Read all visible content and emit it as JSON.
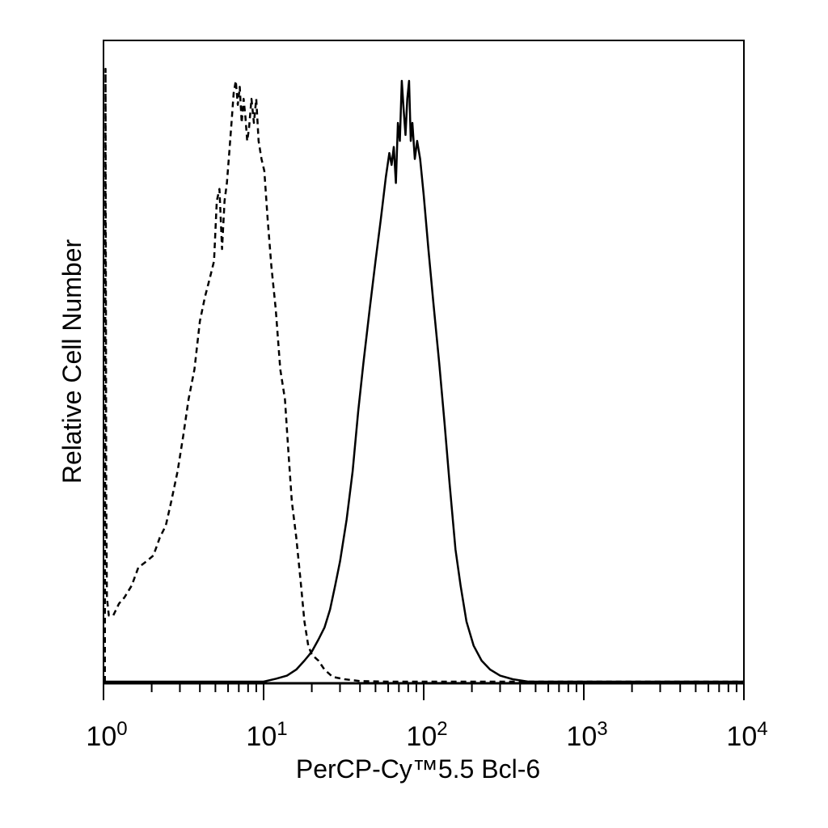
{
  "chart_data": {
    "type": "line",
    "title": "",
    "xlabel": "PerCP-Cy™5.5 Bcl-6",
    "ylabel": "Relative Cell Number",
    "x_scale": "log",
    "xlim": [
      1,
      10000
    ],
    "ylim": [
      0,
      1
    ],
    "grid": false,
    "legend": "none",
    "x_ticks": [
      {
        "value": 1,
        "base": "10",
        "exp": "0"
      },
      {
        "value": 10,
        "base": "10",
        "exp": "1"
      },
      {
        "value": 100,
        "base": "10",
        "exp": "2"
      },
      {
        "value": 1000,
        "base": "10",
        "exp": "3"
      },
      {
        "value": 10000,
        "base": "10",
        "exp": "4"
      }
    ],
    "series": [
      {
        "style": "dashed",
        "color": "#000000",
        "points": [
          [
            1.02,
            0.0
          ],
          [
            1.03,
            1.02
          ],
          [
            1.04,
            0.31
          ],
          [
            1.05,
            0.14
          ],
          [
            1.08,
            0.11
          ],
          [
            1.15,
            0.11
          ],
          [
            1.25,
            0.13
          ],
          [
            1.35,
            0.14
          ],
          [
            1.5,
            0.16
          ],
          [
            1.65,
            0.19
          ],
          [
            1.85,
            0.2
          ],
          [
            2.05,
            0.21
          ],
          [
            2.25,
            0.24
          ],
          [
            2.45,
            0.26
          ],
          [
            2.65,
            0.3
          ],
          [
            2.9,
            0.35
          ],
          [
            3.15,
            0.41
          ],
          [
            3.4,
            0.47
          ],
          [
            3.7,
            0.52
          ],
          [
            4.0,
            0.6
          ],
          [
            4.3,
            0.64
          ],
          [
            4.6,
            0.67
          ],
          [
            4.9,
            0.7
          ],
          [
            5.1,
            0.8
          ],
          [
            5.3,
            0.82
          ],
          [
            5.5,
            0.72
          ],
          [
            5.7,
            0.8
          ],
          [
            5.9,
            0.83
          ],
          [
            6.1,
            0.88
          ],
          [
            6.3,
            0.93
          ],
          [
            6.5,
            0.98
          ],
          [
            6.7,
            1.0
          ],
          [
            6.9,
            0.96
          ],
          [
            7.1,
            0.99
          ],
          [
            7.3,
            0.93
          ],
          [
            7.5,
            0.97
          ],
          [
            7.7,
            0.94
          ],
          [
            7.9,
            0.9
          ],
          [
            8.1,
            0.92
          ],
          [
            8.4,
            0.97
          ],
          [
            8.7,
            0.93
          ],
          [
            9.0,
            0.97
          ],
          [
            9.3,
            0.9
          ],
          [
            9.7,
            0.87
          ],
          [
            10.1,
            0.85
          ],
          [
            10.6,
            0.77
          ],
          [
            11.2,
            0.69
          ],
          [
            11.9,
            0.62
          ],
          [
            12.7,
            0.52
          ],
          [
            13.6,
            0.47
          ],
          [
            14.3,
            0.38
          ],
          [
            15.0,
            0.3
          ],
          [
            16.0,
            0.24
          ],
          [
            17.0,
            0.17
          ],
          [
            18.0,
            0.1
          ],
          [
            19.0,
            0.06
          ],
          [
            20.0,
            0.045
          ],
          [
            22.0,
            0.035
          ],
          [
            24.0,
            0.02
          ],
          [
            27.0,
            0.008
          ],
          [
            32.0,
            0.004
          ],
          [
            40.0,
            0.001
          ],
          [
            60.0,
            0.0
          ],
          [
            10000,
            0.0
          ]
        ]
      },
      {
        "style": "solid",
        "color": "#000000",
        "points": [
          [
            1.0,
            0.0
          ],
          [
            10.0,
            0.0
          ],
          [
            12.0,
            0.005
          ],
          [
            14.0,
            0.01
          ],
          [
            16.0,
            0.02
          ],
          [
            18.0,
            0.035
          ],
          [
            20.0,
            0.05
          ],
          [
            22.0,
            0.07
          ],
          [
            24.0,
            0.09
          ],
          [
            26.0,
            0.12
          ],
          [
            28.0,
            0.16
          ],
          [
            30.0,
            0.2
          ],
          [
            33.0,
            0.27
          ],
          [
            36.0,
            0.35
          ],
          [
            39.0,
            0.45
          ],
          [
            42.0,
            0.53
          ],
          [
            46.0,
            0.62
          ],
          [
            50.0,
            0.7
          ],
          [
            54.0,
            0.77
          ],
          [
            58.0,
            0.84
          ],
          [
            61.0,
            0.88
          ],
          [
            63.0,
            0.86
          ],
          [
            65.0,
            0.89
          ],
          [
            67.0,
            0.83
          ],
          [
            69.0,
            0.93
          ],
          [
            71.0,
            0.9
          ],
          [
            73.0,
            1.0
          ],
          [
            75.0,
            0.95
          ],
          [
            77.0,
            0.91
          ],
          [
            79.0,
            0.97
          ],
          [
            81.0,
            1.0
          ],
          [
            83.0,
            0.9
          ],
          [
            85.0,
            0.93
          ],
          [
            88.0,
            0.87
          ],
          [
            91.0,
            0.9
          ],
          [
            95.0,
            0.87
          ],
          [
            100.0,
            0.81
          ],
          [
            107.0,
            0.72
          ],
          [
            115.0,
            0.63
          ],
          [
            125.0,
            0.53
          ],
          [
            135.0,
            0.43
          ],
          [
            145.0,
            0.33
          ],
          [
            158.0,
            0.22
          ],
          [
            170.0,
            0.16
          ],
          [
            185.0,
            0.1
          ],
          [
            205.0,
            0.06
          ],
          [
            230.0,
            0.035
          ],
          [
            260.0,
            0.02
          ],
          [
            300.0,
            0.01
          ],
          [
            360.0,
            0.004
          ],
          [
            450.0,
            0.0
          ],
          [
            10000,
            0.0
          ]
        ]
      }
    ]
  }
}
